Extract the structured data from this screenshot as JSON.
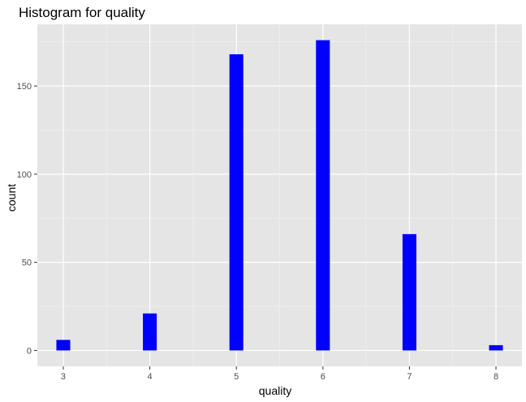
{
  "chart_data": {
    "type": "bar",
    "title": "Histogram for quality",
    "xlabel": "quality",
    "ylabel": "count",
    "x": [
      3,
      4,
      5,
      6,
      7,
      8
    ],
    "values": [
      6,
      21,
      168,
      176,
      66,
      3
    ],
    "xlim": [
      2.7,
      8.3
    ],
    "ylim": [
      -9,
      185
    ],
    "x_ticks": [
      3,
      4,
      5,
      6,
      7,
      8
    ],
    "y_ticks": [
      0,
      50,
      100,
      150
    ],
    "bar_width": 0.16,
    "grid": true,
    "colors": {
      "bar": "#0000ff",
      "panel": "#e5e5e5",
      "grid_major": "#ffffff",
      "grid_minor": "#f2f2f2",
      "tick": "#333333"
    }
  }
}
